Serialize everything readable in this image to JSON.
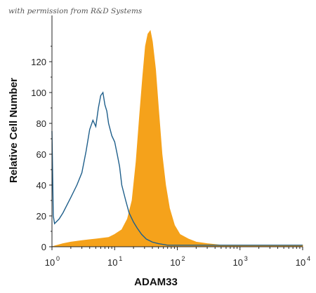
{
  "watermark": "with permission from R&D Systems",
  "chart_data": {
    "type": "area",
    "xlabel": "ADAM33",
    "ylabel": "Relative Cell Number",
    "x_scale": "log",
    "xlim": [
      1,
      10000
    ],
    "ylim": [
      0,
      150
    ],
    "y_ticks": [
      "0",
      "20",
      "40",
      "60",
      "80",
      "100",
      "120"
    ],
    "x_ticks": [
      {
        "base": "10",
        "exp": "0"
      },
      {
        "base": "10",
        "exp": "1"
      },
      {
        "base": "10",
        "exp": "2"
      },
      {
        "base": "10",
        "exp": "3"
      },
      {
        "base": "10",
        "exp": "4"
      }
    ],
    "grid": false,
    "series": [
      {
        "style": "filled",
        "color": "#F5A21B",
        "x": [
          1,
          1.5,
          2,
          3,
          5,
          8,
          10,
          13,
          16,
          19,
          22,
          25,
          28,
          31,
          34,
          37,
          40,
          45,
          50,
          57,
          65,
          75,
          90,
          110,
          150,
          200,
          300,
          500,
          1000,
          3000,
          10000
        ],
        "y": [
          0,
          2,
          3,
          4,
          5,
          6,
          8,
          11,
          18,
          30,
          55,
          85,
          110,
          130,
          138,
          140,
          133,
          115,
          90,
          60,
          40,
          25,
          14,
          8,
          5,
          3,
          2,
          1,
          1,
          1,
          1
        ]
      },
      {
        "style": "outline",
        "color": "#1F5F8B",
        "x": [
          1,
          1.05,
          1.1,
          1.3,
          1.5,
          2,
          2.5,
          3,
          3.5,
          4,
          4.5,
          5,
          5.5,
          6,
          6.5,
          7,
          7.5,
          8,
          9,
          10,
          11,
          12,
          13,
          15,
          17,
          20,
          23,
          27,
          32,
          40,
          50,
          70,
          100,
          200,
          500,
          1000,
          10000
        ],
        "y": [
          75,
          20,
          15,
          18,
          22,
          32,
          40,
          48,
          62,
          76,
          82,
          78,
          90,
          98,
          100,
          92,
          88,
          80,
          72,
          68,
          60,
          52,
          40,
          30,
          22,
          16,
          12,
          8,
          5,
          3,
          2,
          1,
          1,
          1,
          1,
          1,
          1
        ]
      }
    ]
  }
}
